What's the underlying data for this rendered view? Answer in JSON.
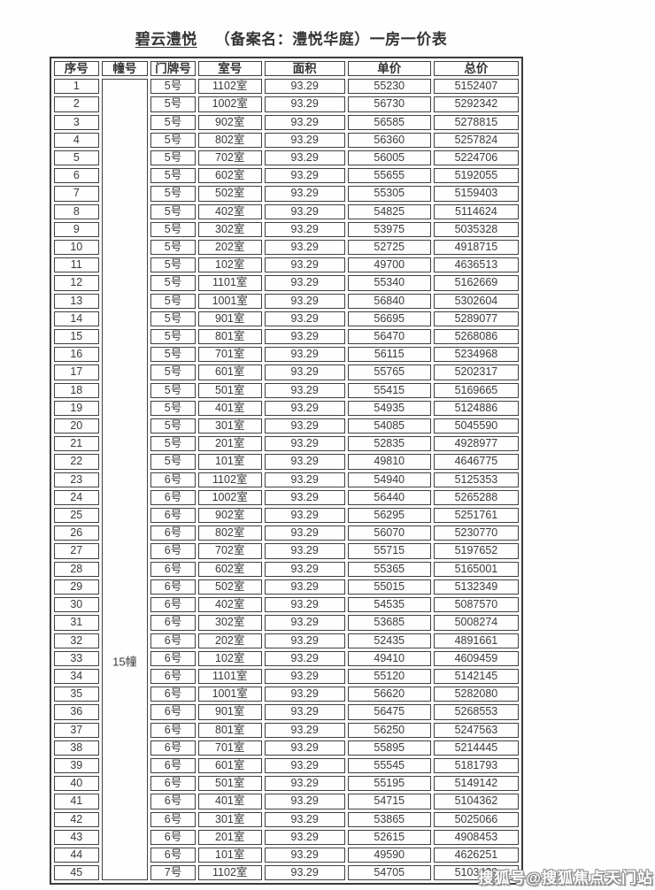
{
  "title": {
    "project": "碧云澧悦",
    "rest": "（备案名：澧悦华庭）一房一价表"
  },
  "watermark": "搜狐号@搜狐焦点天门站",
  "table": {
    "headers": [
      "序号",
      "幢号",
      "门牌号",
      "室号",
      "面积",
      "单价",
      "总价"
    ],
    "building_label": "15幢",
    "rows": [
      [
        "1",
        "5号",
        "1102室",
        "93.29",
        "55230",
        "5152407"
      ],
      [
        "2",
        "5号",
        "1002室",
        "93.29",
        "56730",
        "5292342"
      ],
      [
        "3",
        "5号",
        "902室",
        "93.29",
        "56585",
        "5278815"
      ],
      [
        "4",
        "5号",
        "802室",
        "93.29",
        "56360",
        "5257824"
      ],
      [
        "5",
        "5号",
        "702室",
        "93.29",
        "56005",
        "5224706"
      ],
      [
        "6",
        "5号",
        "602室",
        "93.29",
        "55655",
        "5192055"
      ],
      [
        "7",
        "5号",
        "502室",
        "93.29",
        "55305",
        "5159403"
      ],
      [
        "8",
        "5号",
        "402室",
        "93.29",
        "54825",
        "5114624"
      ],
      [
        "9",
        "5号",
        "302室",
        "93.29",
        "53975",
        "5035328"
      ],
      [
        "10",
        "5号",
        "202室",
        "93.29",
        "52725",
        "4918715"
      ],
      [
        "11",
        "5号",
        "102室",
        "93.29",
        "49700",
        "4636513"
      ],
      [
        "12",
        "5号",
        "1101室",
        "93.29",
        "55340",
        "5162669"
      ],
      [
        "13",
        "5号",
        "1001室",
        "93.29",
        "56840",
        "5302604"
      ],
      [
        "14",
        "5号",
        "901室",
        "93.29",
        "56695",
        "5289077"
      ],
      [
        "15",
        "5号",
        "801室",
        "93.29",
        "56470",
        "5268086"
      ],
      [
        "16",
        "5号",
        "701室",
        "93.29",
        "56115",
        "5234968"
      ],
      [
        "17",
        "5号",
        "601室",
        "93.29",
        "55765",
        "5202317"
      ],
      [
        "18",
        "5号",
        "501室",
        "93.29",
        "55415",
        "5169665"
      ],
      [
        "19",
        "5号",
        "401室",
        "93.29",
        "54935",
        "5124886"
      ],
      [
        "20",
        "5号",
        "301室",
        "93.29",
        "54085",
        "5045590"
      ],
      [
        "21",
        "5号",
        "201室",
        "93.29",
        "52835",
        "4928977"
      ],
      [
        "22",
        "5号",
        "101室",
        "93.29",
        "49810",
        "4646775"
      ],
      [
        "23",
        "6号",
        "1102室",
        "93.29",
        "54940",
        "5125353"
      ],
      [
        "24",
        "6号",
        "1002室",
        "93.29",
        "56440",
        "5265288"
      ],
      [
        "25",
        "6号",
        "902室",
        "93.29",
        "56295",
        "5251761"
      ],
      [
        "26",
        "6号",
        "802室",
        "93.29",
        "56070",
        "5230770"
      ],
      [
        "27",
        "6号",
        "702室",
        "93.29",
        "55715",
        "5197652"
      ],
      [
        "28",
        "6号",
        "602室",
        "93.29",
        "55365",
        "5165001"
      ],
      [
        "29",
        "6号",
        "502室",
        "93.29",
        "55015",
        "5132349"
      ],
      [
        "30",
        "6号",
        "402室",
        "93.29",
        "54535",
        "5087570"
      ],
      [
        "31",
        "6号",
        "302室",
        "93.29",
        "53685",
        "5008274"
      ],
      [
        "32",
        "6号",
        "202室",
        "93.29",
        "52435",
        "4891661"
      ],
      [
        "33",
        "6号",
        "102室",
        "93.29",
        "49410",
        "4609459"
      ],
      [
        "34",
        "6号",
        "1101室",
        "93.29",
        "55120",
        "5142145"
      ],
      [
        "35",
        "6号",
        "1001室",
        "93.29",
        "56620",
        "5282080"
      ],
      [
        "36",
        "6号",
        "901室",
        "93.29",
        "56475",
        "5268553"
      ],
      [
        "37",
        "6号",
        "801室",
        "93.29",
        "56250",
        "5247563"
      ],
      [
        "38",
        "6号",
        "701室",
        "93.29",
        "55895",
        "5214445"
      ],
      [
        "39",
        "6号",
        "601室",
        "93.29",
        "55545",
        "5181793"
      ],
      [
        "40",
        "6号",
        "501室",
        "93.29",
        "55195",
        "5149142"
      ],
      [
        "41",
        "6号",
        "401室",
        "93.29",
        "54715",
        "5104362"
      ],
      [
        "42",
        "6号",
        "301室",
        "93.29",
        "53865",
        "5025066"
      ],
      [
        "43",
        "6号",
        "201室",
        "93.29",
        "52615",
        "4908453"
      ],
      [
        "44",
        "6号",
        "101室",
        "93.29",
        "49590",
        "4626251"
      ],
      [
        "45",
        "7号",
        "1102室",
        "93.29",
        "54705",
        "5103429"
      ]
    ]
  }
}
